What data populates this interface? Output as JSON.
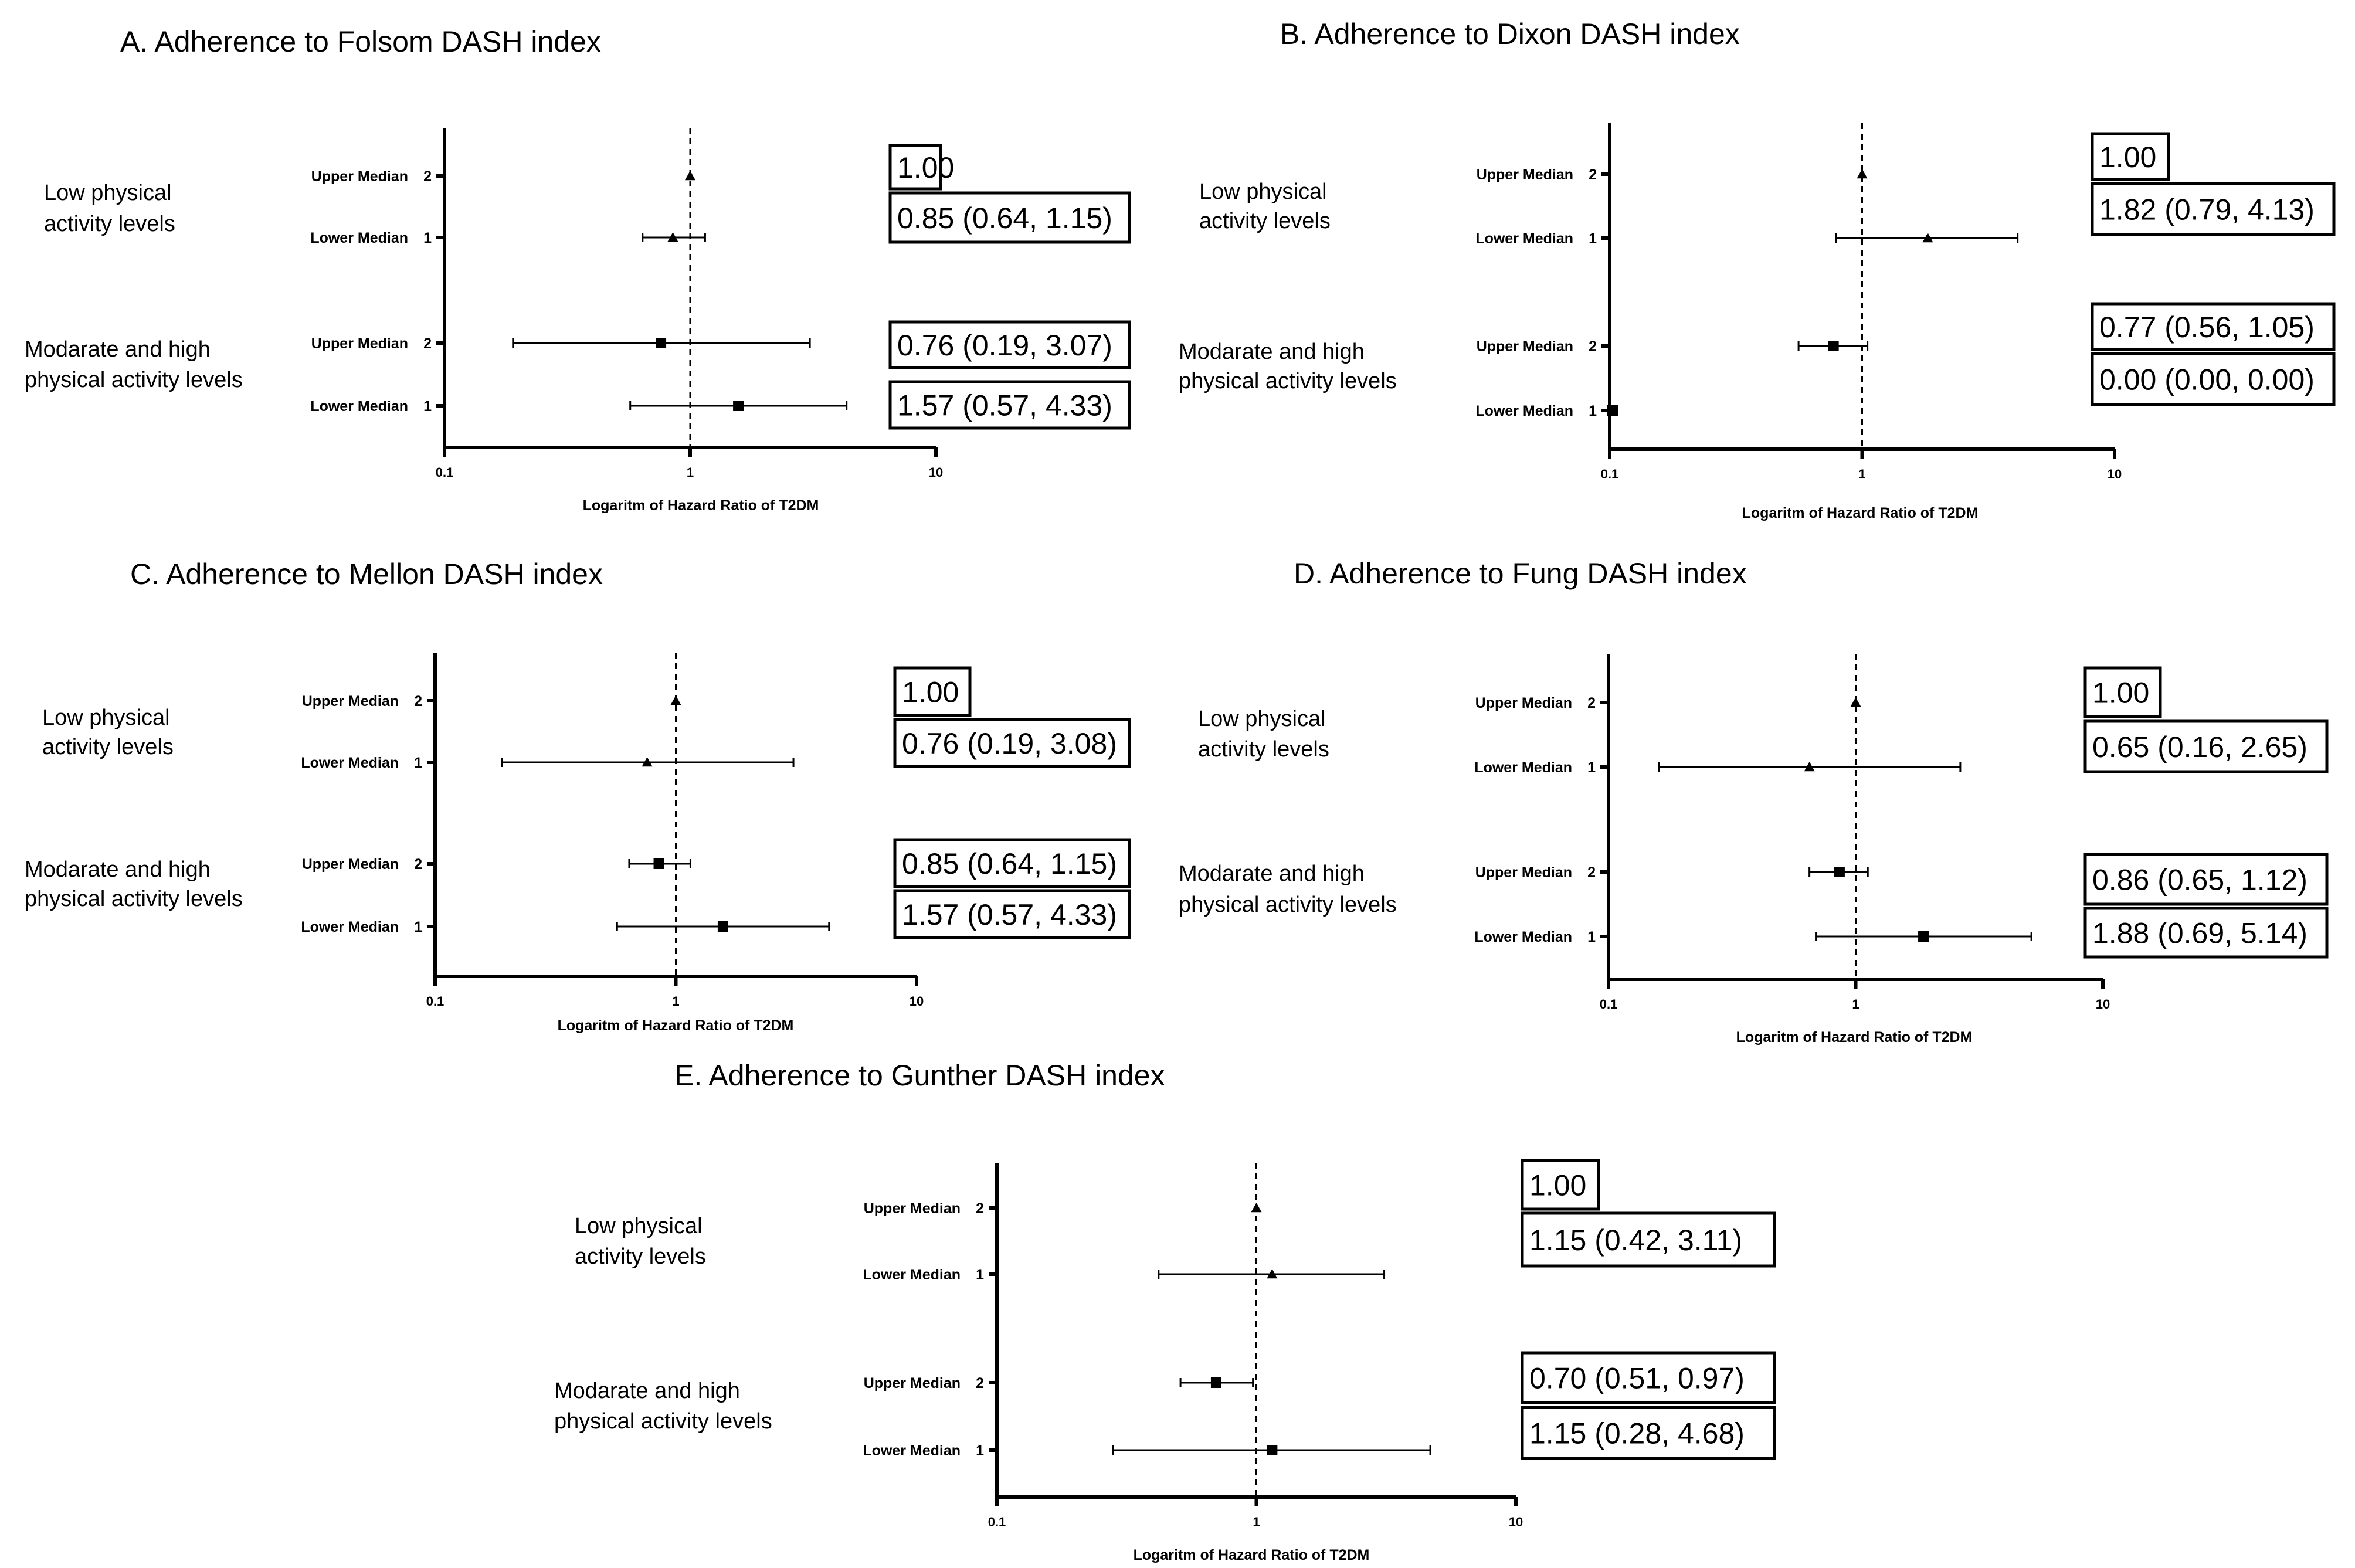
{
  "chart_data": [
    {
      "id": "A",
      "type": "scatter",
      "title": "A. Adherence to Folsom DASH index",
      "xlabel": "Logaritm of Hazard Ratio of T2DM",
      "x_scale": "log",
      "xlim": [
        0.1,
        10
      ],
      "x_ticks": [
        "0.1",
        "1",
        "10"
      ],
      "reference_line": 1,
      "groups": [
        {
          "label_lines": [
            "Low physical",
            "activity levels"
          ],
          "marker": "triangle",
          "rows": [
            {
              "label": "Upper Median",
              "code": "2",
              "hr": 1.0,
              "ci": null,
              "text": "1.00"
            },
            {
              "label": "Lower Median",
              "code": "1",
              "hr": 0.85,
              "ci": [
                0.64,
                1.15
              ],
              "text": "0.85 (0.64, 1.15)"
            }
          ]
        },
        {
          "label_lines": [
            "Modarate and high",
            "physical activity levels"
          ],
          "marker": "square",
          "rows": [
            {
              "label": "Upper Median",
              "code": "2",
              "hr": 0.76,
              "ci": [
                0.19,
                3.07
              ],
              "text": "0.76 (0.19, 3.07)"
            },
            {
              "label": "Lower Median",
              "code": "1",
              "hr": 1.57,
              "ci": [
                0.57,
                4.33
              ],
              "text": "1.57 (0.57, 4.33)"
            }
          ]
        }
      ]
    },
    {
      "id": "B",
      "type": "scatter",
      "title": "B. Adherence to Dixon DASH index",
      "xlabel": "Logaritm of Hazard Ratio of T2DM",
      "x_scale": "log",
      "xlim": [
        0.1,
        10
      ],
      "x_ticks": [
        "0.1",
        "1",
        "10"
      ],
      "reference_line": 1,
      "groups": [
        {
          "label_lines": [
            "Low physical",
            "activity levels"
          ],
          "marker": "triangle",
          "rows": [
            {
              "label": "Upper Median",
              "code": "2",
              "hr": 1.0,
              "ci": null,
              "text": "1.00"
            },
            {
              "label": "Lower Median",
              "code": "1",
              "hr": 1.82,
              "ci": [
                0.79,
                4.13
              ],
              "text": "1.82 (0.79, 4.13)"
            }
          ]
        },
        {
          "label_lines": [
            "Modarate and high",
            "physical activity levels"
          ],
          "marker": "square",
          "rows": [
            {
              "label": "Upper Median",
              "code": "2",
              "hr": 0.77,
              "ci": [
                0.56,
                1.05
              ],
              "text": "0.77 (0.56, 1.05)"
            },
            {
              "label": "Lower Median",
              "code": "1",
              "hr": 0.0,
              "ci": [
                0.0,
                0.0
              ],
              "text": "0.00 (0.00, 0.00)"
            }
          ]
        }
      ]
    },
    {
      "id": "C",
      "type": "scatter",
      "title": "C. Adherence to Mellon DASH index",
      "xlabel": "Logaritm of Hazard Ratio of T2DM",
      "x_scale": "log",
      "xlim": [
        0.1,
        10
      ],
      "x_ticks": [
        "0.1",
        "1",
        "10"
      ],
      "reference_line": 1,
      "groups": [
        {
          "label_lines": [
            "Low physical",
            "activity levels"
          ],
          "marker": "triangle",
          "rows": [
            {
              "label": "Upper Median",
              "code": "2",
              "hr": 1.0,
              "ci": null,
              "text": "1.00"
            },
            {
              "label": "Lower Median",
              "code": "1",
              "hr": 0.76,
              "ci": [
                0.19,
                3.08
              ],
              "text": "0.76 (0.19, 3.08)"
            }
          ]
        },
        {
          "label_lines": [
            "Modarate and high",
            "physical activity levels"
          ],
          "marker": "square",
          "rows": [
            {
              "label": "Upper Median",
              "code": "2",
              "hr": 0.85,
              "ci": [
                0.64,
                1.15
              ],
              "text": "0.85 (0.64, 1.15)"
            },
            {
              "label": "Lower Median",
              "code": "1",
              "hr": 1.57,
              "ci": [
                0.57,
                4.33
              ],
              "text": "1.57 (0.57, 4.33)"
            }
          ]
        }
      ]
    },
    {
      "id": "D",
      "type": "scatter",
      "title": "D. Adherence to Fung DASH index",
      "xlabel": "Logaritm of Hazard Ratio of T2DM",
      "x_scale": "log",
      "xlim": [
        0.1,
        10
      ],
      "x_ticks": [
        "0.1",
        "1",
        "10"
      ],
      "reference_line": 1,
      "groups": [
        {
          "label_lines": [
            "Low physical",
            "activity levels"
          ],
          "marker": "triangle",
          "rows": [
            {
              "label": "Upper Median",
              "code": "2",
              "hr": 1.0,
              "ci": null,
              "text": "1.00"
            },
            {
              "label": "Lower Median",
              "code": "1",
              "hr": 0.65,
              "ci": [
                0.16,
                2.65
              ],
              "text": "0.65 (0.16, 2.65)"
            }
          ]
        },
        {
          "label_lines": [
            "Modarate and high",
            "physical activity levels"
          ],
          "marker": "square",
          "rows": [
            {
              "label": "Upper Median",
              "code": "2",
              "hr": 0.86,
              "ci": [
                0.65,
                1.12
              ],
              "text": "0.86 (0.65, 1.12)"
            },
            {
              "label": "Lower Median",
              "code": "1",
              "hr": 1.88,
              "ci": [
                0.69,
                5.14
              ],
              "text": "1.88 (0.69, 5.14)"
            }
          ]
        }
      ]
    },
    {
      "id": "E",
      "type": "scatter",
      "title": "E. Adherence to Gunther DASH index",
      "xlabel": "Logaritm of Hazard Ratio of T2DM",
      "x_scale": "log",
      "xlim": [
        0.1,
        10
      ],
      "x_ticks": [
        "0.1",
        "1",
        "10"
      ],
      "reference_line": 1,
      "groups": [
        {
          "label_lines": [
            "Low physical",
            "activity levels"
          ],
          "marker": "triangle",
          "rows": [
            {
              "label": "Upper Median",
              "code": "2",
              "hr": 1.0,
              "ci": null,
              "text": "1.00"
            },
            {
              "label": "Lower Median",
              "code": "1",
              "hr": 1.15,
              "ci": [
                0.42,
                3.11
              ],
              "text": "1.15 (0.42, 3.11)"
            }
          ]
        },
        {
          "label_lines": [
            "Modarate and high",
            "physical activity levels"
          ],
          "marker": "square",
          "rows": [
            {
              "label": "Upper Median",
              "code": "2",
              "hr": 0.7,
              "ci": [
                0.51,
                0.97
              ],
              "text": "0.70 (0.51, 0.97)"
            },
            {
              "label": "Lower Median",
              "code": "1",
              "hr": 1.15,
              "ci": [
                0.28,
                4.68
              ],
              "text": "1.15 (0.28, 4.68)"
            }
          ]
        }
      ]
    }
  ]
}
